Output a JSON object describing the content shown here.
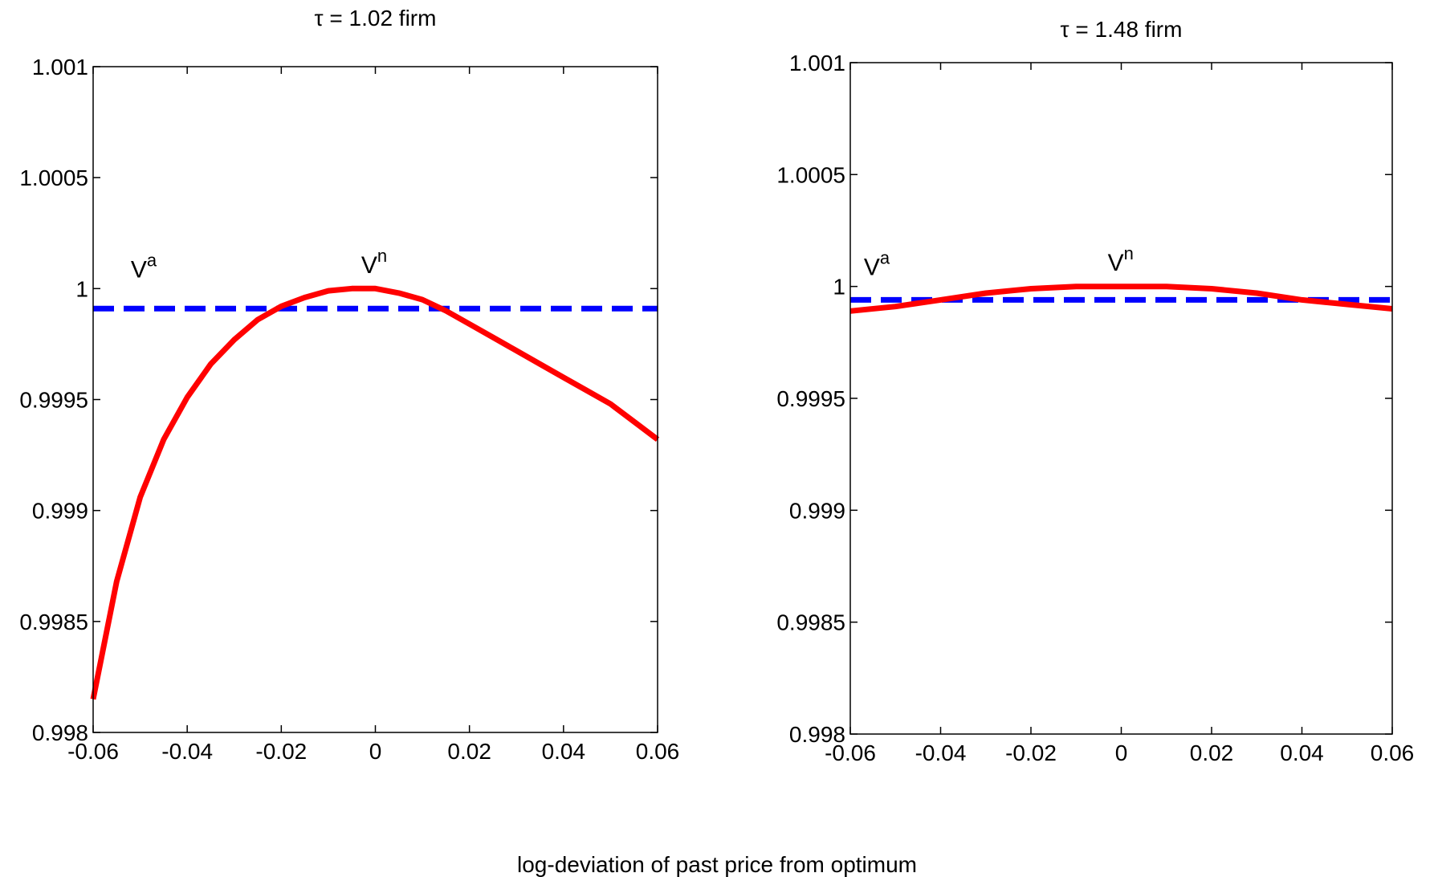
{
  "xlabel": "log-deviation of past price from optimum",
  "chart_data": [
    {
      "type": "line",
      "title": "τ = 1.02 firm",
      "xlim": [
        -0.06,
        0.06
      ],
      "ylim": [
        0.998,
        1.001
      ],
      "x_ticks": [
        -0.06,
        -0.04,
        -0.02,
        0,
        0.02,
        0.04,
        0.06
      ],
      "x_tick_labels": [
        "-0.06",
        "-0.04",
        "-0.02",
        "0",
        "0.02",
        "0.04",
        "0.06"
      ],
      "y_ticks": [
        0.998,
        0.9985,
        0.999,
        0.9995,
        1,
        1.0005,
        1.001
      ],
      "y_tick_labels": [
        "0.998",
        "0.9985",
        "0.999",
        "0.9995",
        "1",
        "1.0005",
        "1.001"
      ],
      "grid": false,
      "series": [
        {
          "name": "V^a",
          "base": "V",
          "sup": "a",
          "color": "#0000ff",
          "style": "dashed",
          "label_at": [
            -0.052,
            1.00005
          ],
          "x": [
            -0.06,
            0.06
          ],
          "y": [
            0.99991,
            0.99991
          ]
        },
        {
          "name": "V^n",
          "base": "V",
          "sup": "n",
          "color": "#ff0000",
          "style": "solid",
          "label_at": [
            -0.003,
            1.00007
          ],
          "x": [
            -0.06,
            -0.055,
            -0.05,
            -0.045,
            -0.04,
            -0.035,
            -0.03,
            -0.025,
            -0.02,
            -0.015,
            -0.01,
            -0.005,
            0,
            0.005,
            0.01,
            0.015,
            0.02,
            0.025,
            0.03,
            0.035,
            0.04,
            0.045,
            0.05,
            0.055,
            0.06
          ],
          "y": [
            0.99815,
            0.99868,
            0.99906,
            0.99932,
            0.99951,
            0.99966,
            0.99977,
            0.99986,
            0.99992,
            0.99996,
            0.99999,
            1.0,
            1.0,
            0.99998,
            0.99995,
            0.9999,
            0.99984,
            0.99978,
            0.99972,
            0.99966,
            0.9996,
            0.99954,
            0.99948,
            0.9994,
            0.99932
          ]
        }
      ]
    },
    {
      "type": "line",
      "title": "τ = 1.48 firm",
      "xlim": [
        -0.06,
        0.06
      ],
      "ylim": [
        0.998,
        1.001
      ],
      "x_ticks": [
        -0.06,
        -0.04,
        -0.02,
        0,
        0.02,
        0.04,
        0.06
      ],
      "x_tick_labels": [
        "-0.06",
        "-0.04",
        "-0.02",
        "0",
        "0.02",
        "0.04",
        "0.06"
      ],
      "y_ticks": [
        0.998,
        0.9985,
        0.999,
        0.9995,
        1,
        1.0005,
        1.001
      ],
      "y_tick_labels": [
        "0.998",
        "0.9985",
        "0.999",
        "0.9995",
        "1",
        "1.0005",
        "1.001"
      ],
      "grid": false,
      "series": [
        {
          "name": "V^a",
          "base": "V",
          "sup": "a",
          "color": "#0000ff",
          "style": "dashed",
          "label_at": [
            -0.057,
            1.00005
          ],
          "x": [
            -0.06,
            0.06
          ],
          "y": [
            0.99994,
            0.99994
          ]
        },
        {
          "name": "V^n",
          "base": "V",
          "sup": "n",
          "color": "#ff0000",
          "style": "solid",
          "label_at": [
            -0.003,
            1.00007
          ],
          "x": [
            -0.06,
            -0.05,
            -0.04,
            -0.03,
            -0.02,
            -0.01,
            0,
            0.01,
            0.02,
            0.03,
            0.04,
            0.05,
            0.06
          ],
          "y": [
            0.99989,
            0.99991,
            0.99994,
            0.99997,
            0.99999,
            1.0,
            1.0,
            1.0,
            0.99999,
            0.99997,
            0.99994,
            0.99992,
            0.9999
          ]
        }
      ]
    }
  ]
}
